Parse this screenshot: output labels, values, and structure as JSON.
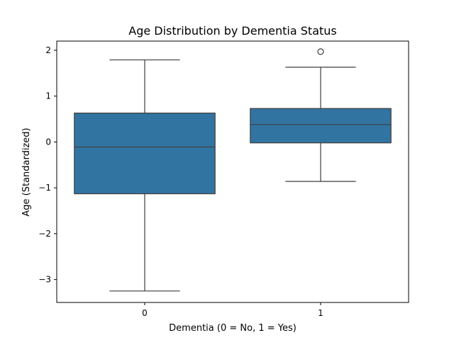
{
  "chart_data": {
    "type": "box",
    "title": "Age Distribution by Dementia Status",
    "xlabel": "Dementia (0 = No, 1 = Yes)",
    "ylabel": "Age (Standardized)",
    "categories": [
      "0",
      "1"
    ],
    "ylim": [
      -3.5,
      2.2
    ],
    "yticks": [
      2,
      1,
      0,
      -1,
      -2,
      -3
    ],
    "ytick_labels": [
      "2",
      "1",
      "0",
      "−1",
      "−2",
      "−3"
    ],
    "box_color": "#3274a1",
    "line_color": "#3d3d3d",
    "boxes": [
      {
        "category": "0",
        "whisker_low": -3.25,
        "q1": -1.13,
        "median": -0.11,
        "q3": 0.63,
        "whisker_high": 1.79,
        "outliers": []
      },
      {
        "category": "1",
        "whisker_low": -0.86,
        "q1": -0.02,
        "median": 0.38,
        "q3": 0.73,
        "whisker_high": 1.63,
        "outliers": [
          1.97
        ]
      }
    ],
    "grid": false,
    "legend": "none"
  }
}
